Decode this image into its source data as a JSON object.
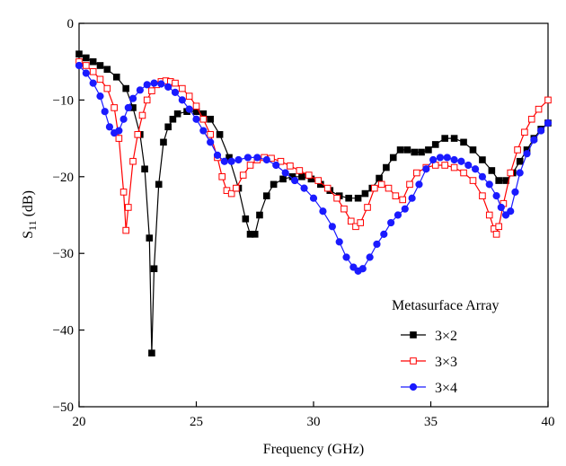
{
  "chart_data": {
    "type": "line",
    "xlabel": "Frequency (GHz)",
    "ylabel_main": "S",
    "ylabel_sub": "11",
    "ylabel_unit": " (dB)",
    "xlim": [
      20,
      40
    ],
    "ylim": [
      -50,
      0
    ],
    "xticks": [
      20,
      25,
      30,
      35,
      40
    ],
    "yticks": [
      0,
      -10,
      -20,
      -30,
      -40,
      -50
    ],
    "xtick_labels": [
      "20",
      "25",
      "30",
      "35",
      "40"
    ],
    "ytick_labels": [
      "0",
      "−10",
      "−20",
      "−30",
      "−40",
      "−50"
    ],
    "grid": false,
    "legend": {
      "title": "Metasurface Array",
      "position": "bottom-right"
    },
    "series": [
      {
        "name": "3×2",
        "color": "#000000",
        "marker": "square-filled",
        "x": [
          20.0,
          20.3,
          20.6,
          20.9,
          21.2,
          21.6,
          22.0,
          22.3,
          22.6,
          22.8,
          23.0,
          23.1,
          23.2,
          23.4,
          23.6,
          23.8,
          24.0,
          24.2,
          24.6,
          25.0,
          25.3,
          25.6,
          26.0,
          26.4,
          26.8,
          27.1,
          27.3,
          27.5,
          27.7,
          28.0,
          28.3,
          28.7,
          29.1,
          29.5,
          29.9,
          30.3,
          30.7,
          31.1,
          31.5,
          31.9,
          32.2,
          32.5,
          32.8,
          33.1,
          33.4,
          33.7,
          34.0,
          34.3,
          34.6,
          34.9,
          35.2,
          35.6,
          36.0,
          36.4,
          36.8,
          37.2,
          37.6,
          37.9,
          38.2,
          38.5,
          38.8,
          39.1,
          39.4,
          39.7,
          40.0
        ],
        "y": [
          -4.0,
          -4.5,
          -5.0,
          -5.5,
          -6.0,
          -7.0,
          -8.5,
          -11.0,
          -14.5,
          -19.0,
          -28.0,
          -43.0,
          -32.0,
          -21.0,
          -15.5,
          -13.5,
          -12.5,
          -11.8,
          -11.5,
          -11.5,
          -11.8,
          -12.5,
          -14.5,
          -17.5,
          -21.5,
          -25.5,
          -27.5,
          -27.5,
          -25.0,
          -22.5,
          -21.0,
          -20.3,
          -20.0,
          -20.0,
          -20.3,
          -21.0,
          -21.8,
          -22.5,
          -22.8,
          -22.8,
          -22.2,
          -21.5,
          -20.2,
          -18.8,
          -17.5,
          -16.5,
          -16.5,
          -16.8,
          -16.8,
          -16.5,
          -15.8,
          -15.0,
          -15.0,
          -15.5,
          -16.5,
          -17.8,
          -19.2,
          -20.5,
          -20.5,
          -19.5,
          -18.0,
          -16.5,
          -15.0,
          -13.8,
          -13.0
        ]
      },
      {
        "name": "3×3",
        "color": "#ff0000",
        "marker": "square-open",
        "x": [
          20.0,
          20.3,
          20.6,
          20.9,
          21.2,
          21.5,
          21.7,
          21.9,
          22.0,
          22.1,
          22.3,
          22.5,
          22.7,
          22.9,
          23.1,
          23.3,
          23.5,
          23.7,
          23.9,
          24.1,
          24.4,
          24.7,
          25.0,
          25.3,
          25.6,
          25.9,
          26.1,
          26.3,
          26.5,
          26.7,
          27.0,
          27.3,
          27.6,
          27.9,
          28.2,
          28.6,
          29.0,
          29.4,
          29.8,
          30.2,
          30.6,
          31.0,
          31.3,
          31.6,
          31.8,
          32.0,
          32.3,
          32.6,
          32.9,
          33.2,
          33.5,
          33.8,
          34.1,
          34.4,
          34.8,
          35.2,
          35.6,
          36.0,
          36.4,
          36.8,
          37.2,
          37.5,
          37.7,
          37.8,
          37.9,
          38.1,
          38.4,
          38.7,
          39.0,
          39.3,
          39.6,
          40.0
        ],
        "y": [
          -5.0,
          -5.5,
          -6.3,
          -7.3,
          -8.5,
          -11.0,
          -15.0,
          -22.0,
          -27.0,
          -24.0,
          -18.0,
          -14.5,
          -12.0,
          -10.0,
          -8.8,
          -8.0,
          -7.6,
          -7.5,
          -7.6,
          -7.8,
          -8.5,
          -9.5,
          -10.8,
          -12.5,
          -14.5,
          -17.5,
          -20.0,
          -21.8,
          -22.2,
          -21.5,
          -19.8,
          -18.5,
          -17.8,
          -17.5,
          -17.6,
          -18.0,
          -18.6,
          -19.2,
          -19.8,
          -20.5,
          -21.5,
          -22.8,
          -24.2,
          -25.8,
          -26.5,
          -26.0,
          -24.0,
          -21.5,
          -21.0,
          -21.5,
          -22.5,
          -23.0,
          -21.0,
          -19.5,
          -18.8,
          -18.5,
          -18.5,
          -18.8,
          -19.5,
          -20.5,
          -22.5,
          -25.0,
          -26.8,
          -27.5,
          -26.5,
          -23.5,
          -19.5,
          -16.5,
          -14.2,
          -12.5,
          -11.2,
          -10.0
        ]
      },
      {
        "name": "3×4",
        "color": "#1a1aff",
        "marker": "circle-filled",
        "x": [
          20.0,
          20.3,
          20.6,
          20.9,
          21.1,
          21.3,
          21.5,
          21.7,
          21.9,
          22.1,
          22.3,
          22.6,
          22.9,
          23.2,
          23.5,
          23.8,
          24.1,
          24.4,
          24.7,
          25.0,
          25.3,
          25.6,
          25.9,
          26.2,
          26.5,
          26.8,
          27.2,
          27.6,
          28.0,
          28.4,
          28.8,
          29.2,
          29.6,
          30.0,
          30.4,
          30.8,
          31.1,
          31.4,
          31.7,
          31.9,
          32.1,
          32.4,
          32.7,
          33.0,
          33.3,
          33.6,
          33.9,
          34.2,
          34.5,
          34.8,
          35.1,
          35.4,
          35.7,
          36.0,
          36.3,
          36.6,
          36.9,
          37.2,
          37.5,
          37.8,
          38.0,
          38.2,
          38.4,
          38.6,
          38.8,
          39.1,
          39.4,
          39.7,
          40.0
        ],
        "y": [
          -5.5,
          -6.5,
          -7.8,
          -9.5,
          -11.5,
          -13.5,
          -14.3,
          -14.0,
          -12.5,
          -11.0,
          -9.8,
          -8.7,
          -8.0,
          -7.8,
          -7.9,
          -8.3,
          -9.0,
          -10.0,
          -11.2,
          -12.5,
          -14.0,
          -15.5,
          -17.2,
          -18.0,
          -18.0,
          -17.8,
          -17.5,
          -17.5,
          -17.8,
          -18.5,
          -19.5,
          -20.5,
          -21.5,
          -22.8,
          -24.5,
          -26.5,
          -28.5,
          -30.5,
          -31.8,
          -32.3,
          -32.0,
          -30.5,
          -28.8,
          -27.5,
          -26.0,
          -25.0,
          -24.2,
          -22.8,
          -21.0,
          -19.0,
          -17.8,
          -17.5,
          -17.5,
          -17.8,
          -18.0,
          -18.5,
          -19.0,
          -20.0,
          -21.0,
          -22.5,
          -24.0,
          -25.0,
          -24.5,
          -22.0,
          -19.5,
          -17.0,
          -15.2,
          -14.0,
          -13.0
        ]
      }
    ]
  }
}
